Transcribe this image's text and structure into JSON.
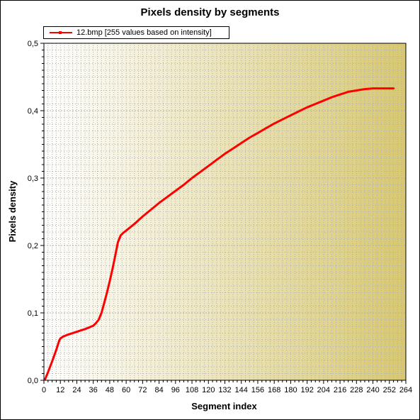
{
  "chart_data": {
    "type": "line",
    "title": "Pixels density by segments",
    "xlabel": "Segment index",
    "ylabel": "Pixels density",
    "xlim": [
      0,
      264
    ],
    "ylim": [
      0,
      0.5
    ],
    "x_ticks": [
      0,
      12,
      24,
      36,
      48,
      60,
      72,
      84,
      96,
      108,
      120,
      132,
      144,
      156,
      168,
      180,
      192,
      204,
      216,
      228,
      240,
      252,
      264
    ],
    "y_ticks": [
      {
        "value": 0,
        "label": "0,0"
      },
      {
        "value": 0.1,
        "label": "0,1"
      },
      {
        "value": 0.2,
        "label": "0,2"
      },
      {
        "value": 0.3,
        "label": "0,3"
      },
      {
        "value": 0.4,
        "label": "0,4"
      },
      {
        "value": 0.5,
        "label": "0,5"
      }
    ],
    "grid": true,
    "legend_position": "top-left",
    "colors": {
      "line": "#ff0000",
      "plot_bg_start": "#ffffff",
      "plot_bg_end": "#d8c870",
      "grid": "#b0b0b0"
    },
    "series": [
      {
        "name": "12.bmp [255 values based on intensity]",
        "x": [
          1,
          3,
          6,
          9,
          11,
          12,
          14,
          18,
          24,
          30,
          36,
          38,
          40,
          42,
          44,
          46,
          48,
          50,
          52,
          53,
          54,
          55,
          56,
          58,
          60,
          66,
          72,
          78,
          84,
          90,
          96,
          102,
          108,
          114,
          120,
          126,
          132,
          138,
          144,
          150,
          156,
          162,
          168,
          174,
          180,
          186,
          192,
          198,
          204,
          210,
          216,
          222,
          228,
          234,
          240,
          246,
          252,
          255
        ],
        "y": [
          0.002,
          0.012,
          0.028,
          0.045,
          0.058,
          0.062,
          0.065,
          0.068,
          0.072,
          0.076,
          0.081,
          0.085,
          0.09,
          0.1,
          0.115,
          0.13,
          0.147,
          0.165,
          0.185,
          0.195,
          0.205,
          0.21,
          0.215,
          0.219,
          0.222,
          0.232,
          0.243,
          0.253,
          0.263,
          0.272,
          0.281,
          0.29,
          0.3,
          0.309,
          0.318,
          0.327,
          0.336,
          0.344,
          0.352,
          0.36,
          0.367,
          0.374,
          0.381,
          0.387,
          0.393,
          0.399,
          0.405,
          0.41,
          0.415,
          0.42,
          0.424,
          0.428,
          0.43,
          0.432,
          0.433,
          0.433,
          0.433,
          0.433
        ]
      }
    ]
  }
}
